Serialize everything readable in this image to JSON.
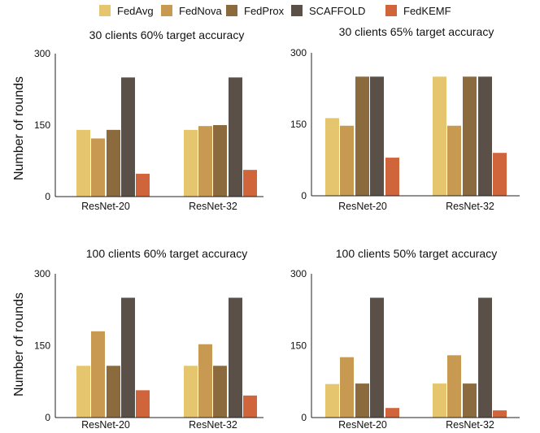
{
  "legend": [
    {
      "name": "FedAvg",
      "color": "#E5C66F"
    },
    {
      "name": "FedNova",
      "color": "#C89A51"
    },
    {
      "name": "FedProx",
      "color": "#8B6B3E"
    },
    {
      "name": "SCAFFOLD",
      "color": "#5A5048"
    },
    {
      "name": "FedKEMF",
      "color": "#D0643A"
    }
  ],
  "ylabel": "Number of rounds",
  "chart_data": [
    {
      "type": "bar",
      "title": "30 clients 60% target accuracy",
      "categories": [
        "ResNet-20",
        "ResNet-32"
      ],
      "ylim": [
        0,
        300
      ],
      "yticks": [
        0,
        150,
        300
      ],
      "series": [
        {
          "name": "FedAvg",
          "values": [
            140,
            140
          ]
        },
        {
          "name": "FedNova",
          "values": [
            122,
            148
          ]
        },
        {
          "name": "FedProx",
          "values": [
            140,
            150
          ]
        },
        {
          "name": "SCAFFOLD",
          "values": [
            250,
            250
          ]
        },
        {
          "name": "FedKEMF",
          "values": [
            48,
            56
          ]
        }
      ]
    },
    {
      "type": "bar",
      "title": "30 clients 65% target accuracy",
      "categories": [
        "ResNet-20",
        "ResNet-32"
      ],
      "ylim": [
        0,
        300
      ],
      "yticks": [
        0,
        150,
        300
      ],
      "series": [
        {
          "name": "FedAvg",
          "values": [
            163,
            250
          ]
        },
        {
          "name": "FedNova",
          "values": [
            147,
            147
          ]
        },
        {
          "name": "FedProx",
          "values": [
            250,
            250
          ]
        },
        {
          "name": "SCAFFOLD",
          "values": [
            250,
            250
          ]
        },
        {
          "name": "FedKEMF",
          "values": [
            80,
            90
          ]
        }
      ]
    },
    {
      "type": "bar",
      "title": "100 clients 60% target accuracy",
      "categories": [
        "ResNet-20",
        "ResNet-32"
      ],
      "ylim": [
        0,
        300
      ],
      "yticks": [
        0,
        150,
        300
      ],
      "series": [
        {
          "name": "FedAvg",
          "values": [
            108,
            108
          ]
        },
        {
          "name": "FedNova",
          "values": [
            180,
            153
          ]
        },
        {
          "name": "FedProx",
          "values": [
            108,
            108
          ]
        },
        {
          "name": "SCAFFOLD",
          "values": [
            250,
            250
          ]
        },
        {
          "name": "FedKEMF",
          "values": [
            57,
            46
          ]
        }
      ]
    },
    {
      "type": "bar",
      "title": "100 clients 50% target accuracy",
      "categories": [
        "ResNet-20",
        "ResNet-32"
      ],
      "ylim": [
        0,
        300
      ],
      "yticks": [
        0,
        150,
        300
      ],
      "series": [
        {
          "name": "FedAvg",
          "values": [
            70,
            71
          ]
        },
        {
          "name": "FedNova",
          "values": [
            126,
            130
          ]
        },
        {
          "name": "FedProx",
          "values": [
            71,
            71
          ]
        },
        {
          "name": "SCAFFOLD",
          "values": [
            250,
            250
          ]
        },
        {
          "name": "FedKEMF",
          "values": [
            20,
            15
          ]
        }
      ]
    }
  ]
}
